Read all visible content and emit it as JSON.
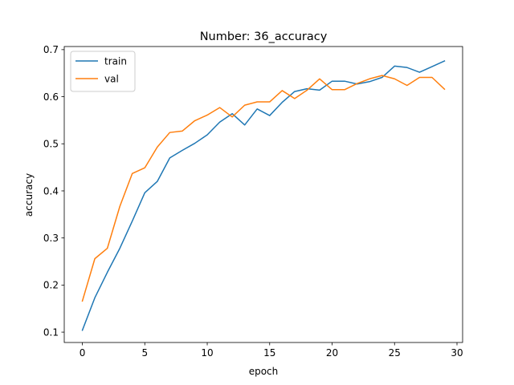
{
  "chart_data": {
    "type": "line",
    "title": "Number: 36_accuracy",
    "xlabel": "epoch",
    "ylabel": "accuracy",
    "xlim": [
      -1.45,
      30.45
    ],
    "ylim": [
      0.078,
      0.7066
    ],
    "xticks": [
      0,
      5,
      10,
      15,
      20,
      25,
      30
    ],
    "yticks": [
      0.1,
      0.2,
      0.3,
      0.4,
      0.5,
      0.6,
      0.7
    ],
    "xtick_labels": [
      "0",
      "5",
      "10",
      "15",
      "20",
      "25",
      "30"
    ],
    "ytick_labels": [
      "0.1",
      "0.2",
      "0.3",
      "0.4",
      "0.5",
      "0.6",
      "0.7"
    ],
    "grid": false,
    "legend_position": "upper left",
    "x": [
      0,
      1,
      2,
      3,
      4,
      5,
      6,
      7,
      8,
      9,
      10,
      11,
      12,
      13,
      14,
      15,
      16,
      17,
      18,
      19,
      20,
      21,
      22,
      23,
      24,
      25,
      26,
      27,
      28,
      29
    ],
    "series": [
      {
        "name": "train",
        "color": "#1f77b4",
        "values": [
          0.104,
          0.173,
          0.227,
          0.278,
          0.336,
          0.396,
          0.42,
          0.47,
          0.486,
          0.501,
          0.519,
          0.546,
          0.564,
          0.54,
          0.574,
          0.56,
          0.588,
          0.611,
          0.617,
          0.614,
          0.633,
          0.633,
          0.627,
          0.632,
          0.641,
          0.665,
          0.662,
          0.652,
          0.664,
          0.676
        ]
      },
      {
        "name": "val",
        "color": "#ff7f0e",
        "values": [
          0.166,
          0.256,
          0.278,
          0.367,
          0.437,
          0.449,
          0.493,
          0.524,
          0.527,
          0.549,
          0.561,
          0.577,
          0.557,
          0.582,
          0.589,
          0.589,
          0.613,
          0.596,
          0.614,
          0.638,
          0.615,
          0.615,
          0.628,
          0.638,
          0.645,
          0.638,
          0.624,
          0.641,
          0.641,
          0.616
        ]
      }
    ]
  }
}
